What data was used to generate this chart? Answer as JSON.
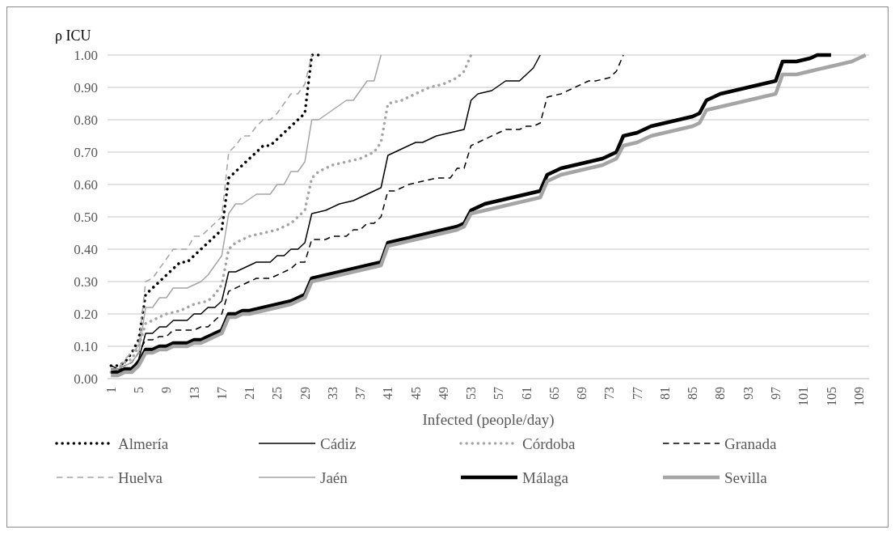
{
  "chart_data": {
    "type": "line",
    "xlabel": "Infected (people/day)",
    "ylabel": "ρ ICU",
    "xlim": [
      0.5,
      110.5
    ],
    "xticks": [
      1,
      5,
      9,
      13,
      17,
      21,
      25,
      29,
      33,
      37,
      41,
      45,
      49,
      53,
      57,
      61,
      65,
      69,
      73,
      77,
      81,
      85,
      89,
      93,
      97,
      101,
      105,
      109
    ],
    "ylim": [
      0,
      1
    ],
    "yticks": [
      {
        "value": 0,
        "label": "0.00"
      },
      {
        "value": 0.1,
        "label": "0.10"
      },
      {
        "value": 0.2,
        "label": "0.20"
      },
      {
        "value": 0.3,
        "label": "0.30"
      },
      {
        "value": 0.4,
        "label": "0.40"
      },
      {
        "value": 0.5,
        "label": "0.50"
      },
      {
        "value": 0.6,
        "label": "0.60"
      },
      {
        "value": 0.7,
        "label": "0.70"
      },
      {
        "value": 0.8,
        "label": "0.80"
      },
      {
        "value": 0.9,
        "label": "0.90"
      },
      {
        "value": 1,
        "label": "1.00"
      }
    ],
    "grid": "y",
    "legend": "bottom",
    "marker": "none",
    "series": [
      {
        "name": "Almería",
        "color": "#000000",
        "line_style": "dotted",
        "x": [
          1,
          2,
          3,
          4,
          5,
          6,
          7,
          8,
          9,
          10,
          11,
          12,
          13,
          14,
          15,
          16,
          17,
          18,
          19,
          20,
          21,
          22,
          23,
          24,
          25,
          26,
          27,
          28,
          29,
          30,
          31
        ],
        "values": [
          0.04,
          0.04,
          0.05,
          0.08,
          0.12,
          0.26,
          0.28,
          0.3,
          0.32,
          0.34,
          0.36,
          0.36,
          0.38,
          0.4,
          0.42,
          0.44,
          0.46,
          0.62,
          0.64,
          0.66,
          0.68,
          0.7,
          0.72,
          0.72,
          0.74,
          0.76,
          0.78,
          0.8,
          0.82,
          1.0,
          1.0
        ]
      },
      {
        "name": "Cádiz",
        "color": "#000000",
        "line_style": "solid",
        "x": [
          1,
          2,
          3,
          4,
          5,
          6,
          7,
          8,
          9,
          10,
          12,
          13,
          14,
          15,
          16,
          17,
          18,
          19,
          20,
          22,
          24,
          25,
          26,
          27,
          28,
          29,
          30,
          32,
          34,
          36,
          38,
          40,
          41,
          43,
          45,
          46,
          48,
          50,
          52,
          53,
          54,
          56,
          58,
          60,
          61,
          62,
          63
        ],
        "values": [
          0.03,
          0.03,
          0.03,
          0.03,
          0.06,
          0.14,
          0.14,
          0.16,
          0.16,
          0.18,
          0.18,
          0.2,
          0.2,
          0.22,
          0.22,
          0.24,
          0.33,
          0.33,
          0.34,
          0.36,
          0.36,
          0.38,
          0.38,
          0.4,
          0.4,
          0.42,
          0.51,
          0.52,
          0.54,
          0.55,
          0.57,
          0.59,
          0.69,
          0.71,
          0.73,
          0.73,
          0.75,
          0.76,
          0.77,
          0.86,
          0.88,
          0.89,
          0.92,
          0.92,
          0.94,
          0.96,
          1.0
        ]
      },
      {
        "name": "Córdoba",
        "color": "#a5a5a5",
        "line_style": "dotted",
        "x": [
          1,
          2,
          3,
          4,
          5,
          6,
          7,
          9,
          11,
          13,
          15,
          16,
          17,
          18,
          19,
          21,
          23,
          25,
          27,
          28,
          29,
          30,
          31,
          33,
          35,
          37,
          39,
          40,
          41,
          43,
          45,
          47,
          49,
          51,
          52,
          53
        ],
        "values": [
          0.02,
          0.03,
          0.05,
          0.06,
          0.1,
          0.17,
          0.18,
          0.2,
          0.21,
          0.23,
          0.24,
          0.26,
          0.29,
          0.4,
          0.42,
          0.44,
          0.45,
          0.46,
          0.48,
          0.5,
          0.52,
          0.62,
          0.64,
          0.66,
          0.67,
          0.68,
          0.7,
          0.73,
          0.85,
          0.86,
          0.88,
          0.9,
          0.91,
          0.93,
          0.95,
          1.0
        ]
      },
      {
        "name": "Granada",
        "color": "#000000",
        "line_style": "dashed",
        "x": [
          1,
          2,
          3,
          4,
          5,
          6,
          7,
          8,
          9,
          10,
          13,
          14,
          15,
          16,
          17,
          18,
          20,
          22,
          24,
          25,
          27,
          28,
          29,
          30,
          32,
          33,
          35,
          36,
          37,
          38,
          39,
          40,
          41,
          42,
          44,
          46,
          48,
          50,
          51,
          52,
          53,
          55,
          57,
          58,
          60,
          61,
          62,
          63,
          64,
          66,
          68,
          70,
          71,
          73,
          74,
          75
        ],
        "values": [
          0.04,
          0.03,
          0.04,
          0.05,
          0.08,
          0.12,
          0.12,
          0.13,
          0.13,
          0.15,
          0.15,
          0.16,
          0.16,
          0.18,
          0.2,
          0.27,
          0.29,
          0.31,
          0.31,
          0.32,
          0.34,
          0.36,
          0.36,
          0.43,
          0.43,
          0.44,
          0.44,
          0.46,
          0.46,
          0.48,
          0.48,
          0.5,
          0.58,
          0.58,
          0.6,
          0.61,
          0.62,
          0.62,
          0.65,
          0.65,
          0.72,
          0.74,
          0.76,
          0.77,
          0.77,
          0.78,
          0.78,
          0.79,
          0.87,
          0.88,
          0.9,
          0.92,
          0.92,
          0.93,
          0.95,
          1.0
        ]
      },
      {
        "name": "Huelva",
        "color": "#a5a5a5",
        "line_style": "dashed",
        "x": [
          1,
          2,
          3,
          4,
          5,
          6,
          7,
          8,
          9,
          10,
          12,
          13,
          14,
          15,
          16,
          17,
          18,
          19,
          20,
          21,
          22,
          23,
          24,
          25,
          26,
          27,
          28,
          29,
          30
        ],
        "values": [
          0.02,
          0.03,
          0.06,
          0.08,
          0.1,
          0.3,
          0.31,
          0.34,
          0.37,
          0.4,
          0.4,
          0.44,
          0.44,
          0.46,
          0.48,
          0.5,
          0.7,
          0.72,
          0.75,
          0.75,
          0.78,
          0.8,
          0.8,
          0.82,
          0.85,
          0.88,
          0.88,
          0.91,
          1.0
        ]
      },
      {
        "name": "Jaén",
        "color": "#a5a5a5",
        "line_style": "solid",
        "x": [
          1,
          2,
          3,
          4,
          5,
          6,
          7,
          8,
          9,
          10,
          12,
          13,
          14,
          15,
          16,
          17,
          18,
          19,
          20,
          22,
          24,
          25,
          26,
          27,
          28,
          29,
          30,
          31,
          33,
          35,
          36,
          37,
          38,
          39,
          40
        ],
        "values": [
          0.03,
          0.03,
          0.04,
          0.05,
          0.08,
          0.22,
          0.22,
          0.25,
          0.25,
          0.28,
          0.28,
          0.29,
          0.3,
          0.32,
          0.35,
          0.38,
          0.51,
          0.54,
          0.54,
          0.57,
          0.57,
          0.6,
          0.6,
          0.64,
          0.64,
          0.67,
          0.8,
          0.8,
          0.83,
          0.86,
          0.86,
          0.89,
          0.92,
          0.92,
          1.0
        ]
      },
      {
        "name": "Málaga",
        "color": "#000000",
        "line_style": "solid",
        "x": [
          1,
          2,
          3,
          4,
          5,
          6,
          7,
          8,
          9,
          10,
          12,
          13,
          14,
          15,
          16,
          17,
          18,
          19,
          20,
          21,
          23,
          25,
          27,
          29,
          30,
          32,
          34,
          36,
          38,
          40,
          41,
          43,
          45,
          47,
          49,
          51,
          52,
          53,
          55,
          57,
          59,
          61,
          63,
          64,
          66,
          68,
          70,
          72,
          74,
          75,
          77,
          79,
          81,
          83,
          85,
          86,
          87,
          89,
          91,
          93,
          95,
          97,
          98,
          100,
          102,
          103,
          105
        ],
        "values": [
          0.02,
          0.02,
          0.03,
          0.03,
          0.05,
          0.09,
          0.09,
          0.1,
          0.1,
          0.11,
          0.11,
          0.12,
          0.12,
          0.13,
          0.14,
          0.15,
          0.2,
          0.2,
          0.21,
          0.21,
          0.22,
          0.23,
          0.24,
          0.26,
          0.31,
          0.32,
          0.33,
          0.34,
          0.35,
          0.36,
          0.42,
          0.43,
          0.44,
          0.45,
          0.46,
          0.47,
          0.48,
          0.52,
          0.54,
          0.55,
          0.56,
          0.57,
          0.58,
          0.63,
          0.65,
          0.66,
          0.67,
          0.68,
          0.7,
          0.75,
          0.76,
          0.78,
          0.79,
          0.8,
          0.81,
          0.82,
          0.86,
          0.88,
          0.89,
          0.9,
          0.91,
          0.92,
          0.98,
          0.98,
          0.99,
          1.0,
          1.0
        ]
      },
      {
        "name": "Sevilla",
        "color": "#a5a5a5",
        "line_style": "solid",
        "x": [
          1,
          2,
          3,
          4,
          5,
          6,
          7,
          8,
          9,
          10,
          12,
          13,
          14,
          15,
          16,
          17,
          18,
          19,
          20,
          21,
          23,
          25,
          27,
          29,
          30,
          32,
          34,
          36,
          38,
          40,
          41,
          43,
          45,
          47,
          49,
          51,
          52,
          53,
          55,
          57,
          59,
          61,
          63,
          64,
          66,
          68,
          70,
          72,
          74,
          75,
          77,
          79,
          81,
          83,
          85,
          86,
          87,
          89,
          91,
          93,
          95,
          97,
          98,
          100,
          102,
          104,
          106,
          108,
          109,
          110
        ],
        "values": [
          0.01,
          0.01,
          0.02,
          0.02,
          0.04,
          0.08,
          0.08,
          0.09,
          0.09,
          0.1,
          0.1,
          0.11,
          0.11,
          0.12,
          0.13,
          0.14,
          0.19,
          0.19,
          0.2,
          0.2,
          0.21,
          0.22,
          0.23,
          0.25,
          0.3,
          0.31,
          0.32,
          0.33,
          0.34,
          0.35,
          0.41,
          0.42,
          0.43,
          0.44,
          0.45,
          0.46,
          0.47,
          0.51,
          0.52,
          0.53,
          0.54,
          0.55,
          0.56,
          0.61,
          0.63,
          0.64,
          0.65,
          0.66,
          0.68,
          0.72,
          0.73,
          0.75,
          0.76,
          0.77,
          0.78,
          0.79,
          0.83,
          0.84,
          0.85,
          0.86,
          0.87,
          0.88,
          0.94,
          0.94,
          0.95,
          0.96,
          0.97,
          0.98,
          0.99,
          1.0
        ]
      }
    ]
  }
}
